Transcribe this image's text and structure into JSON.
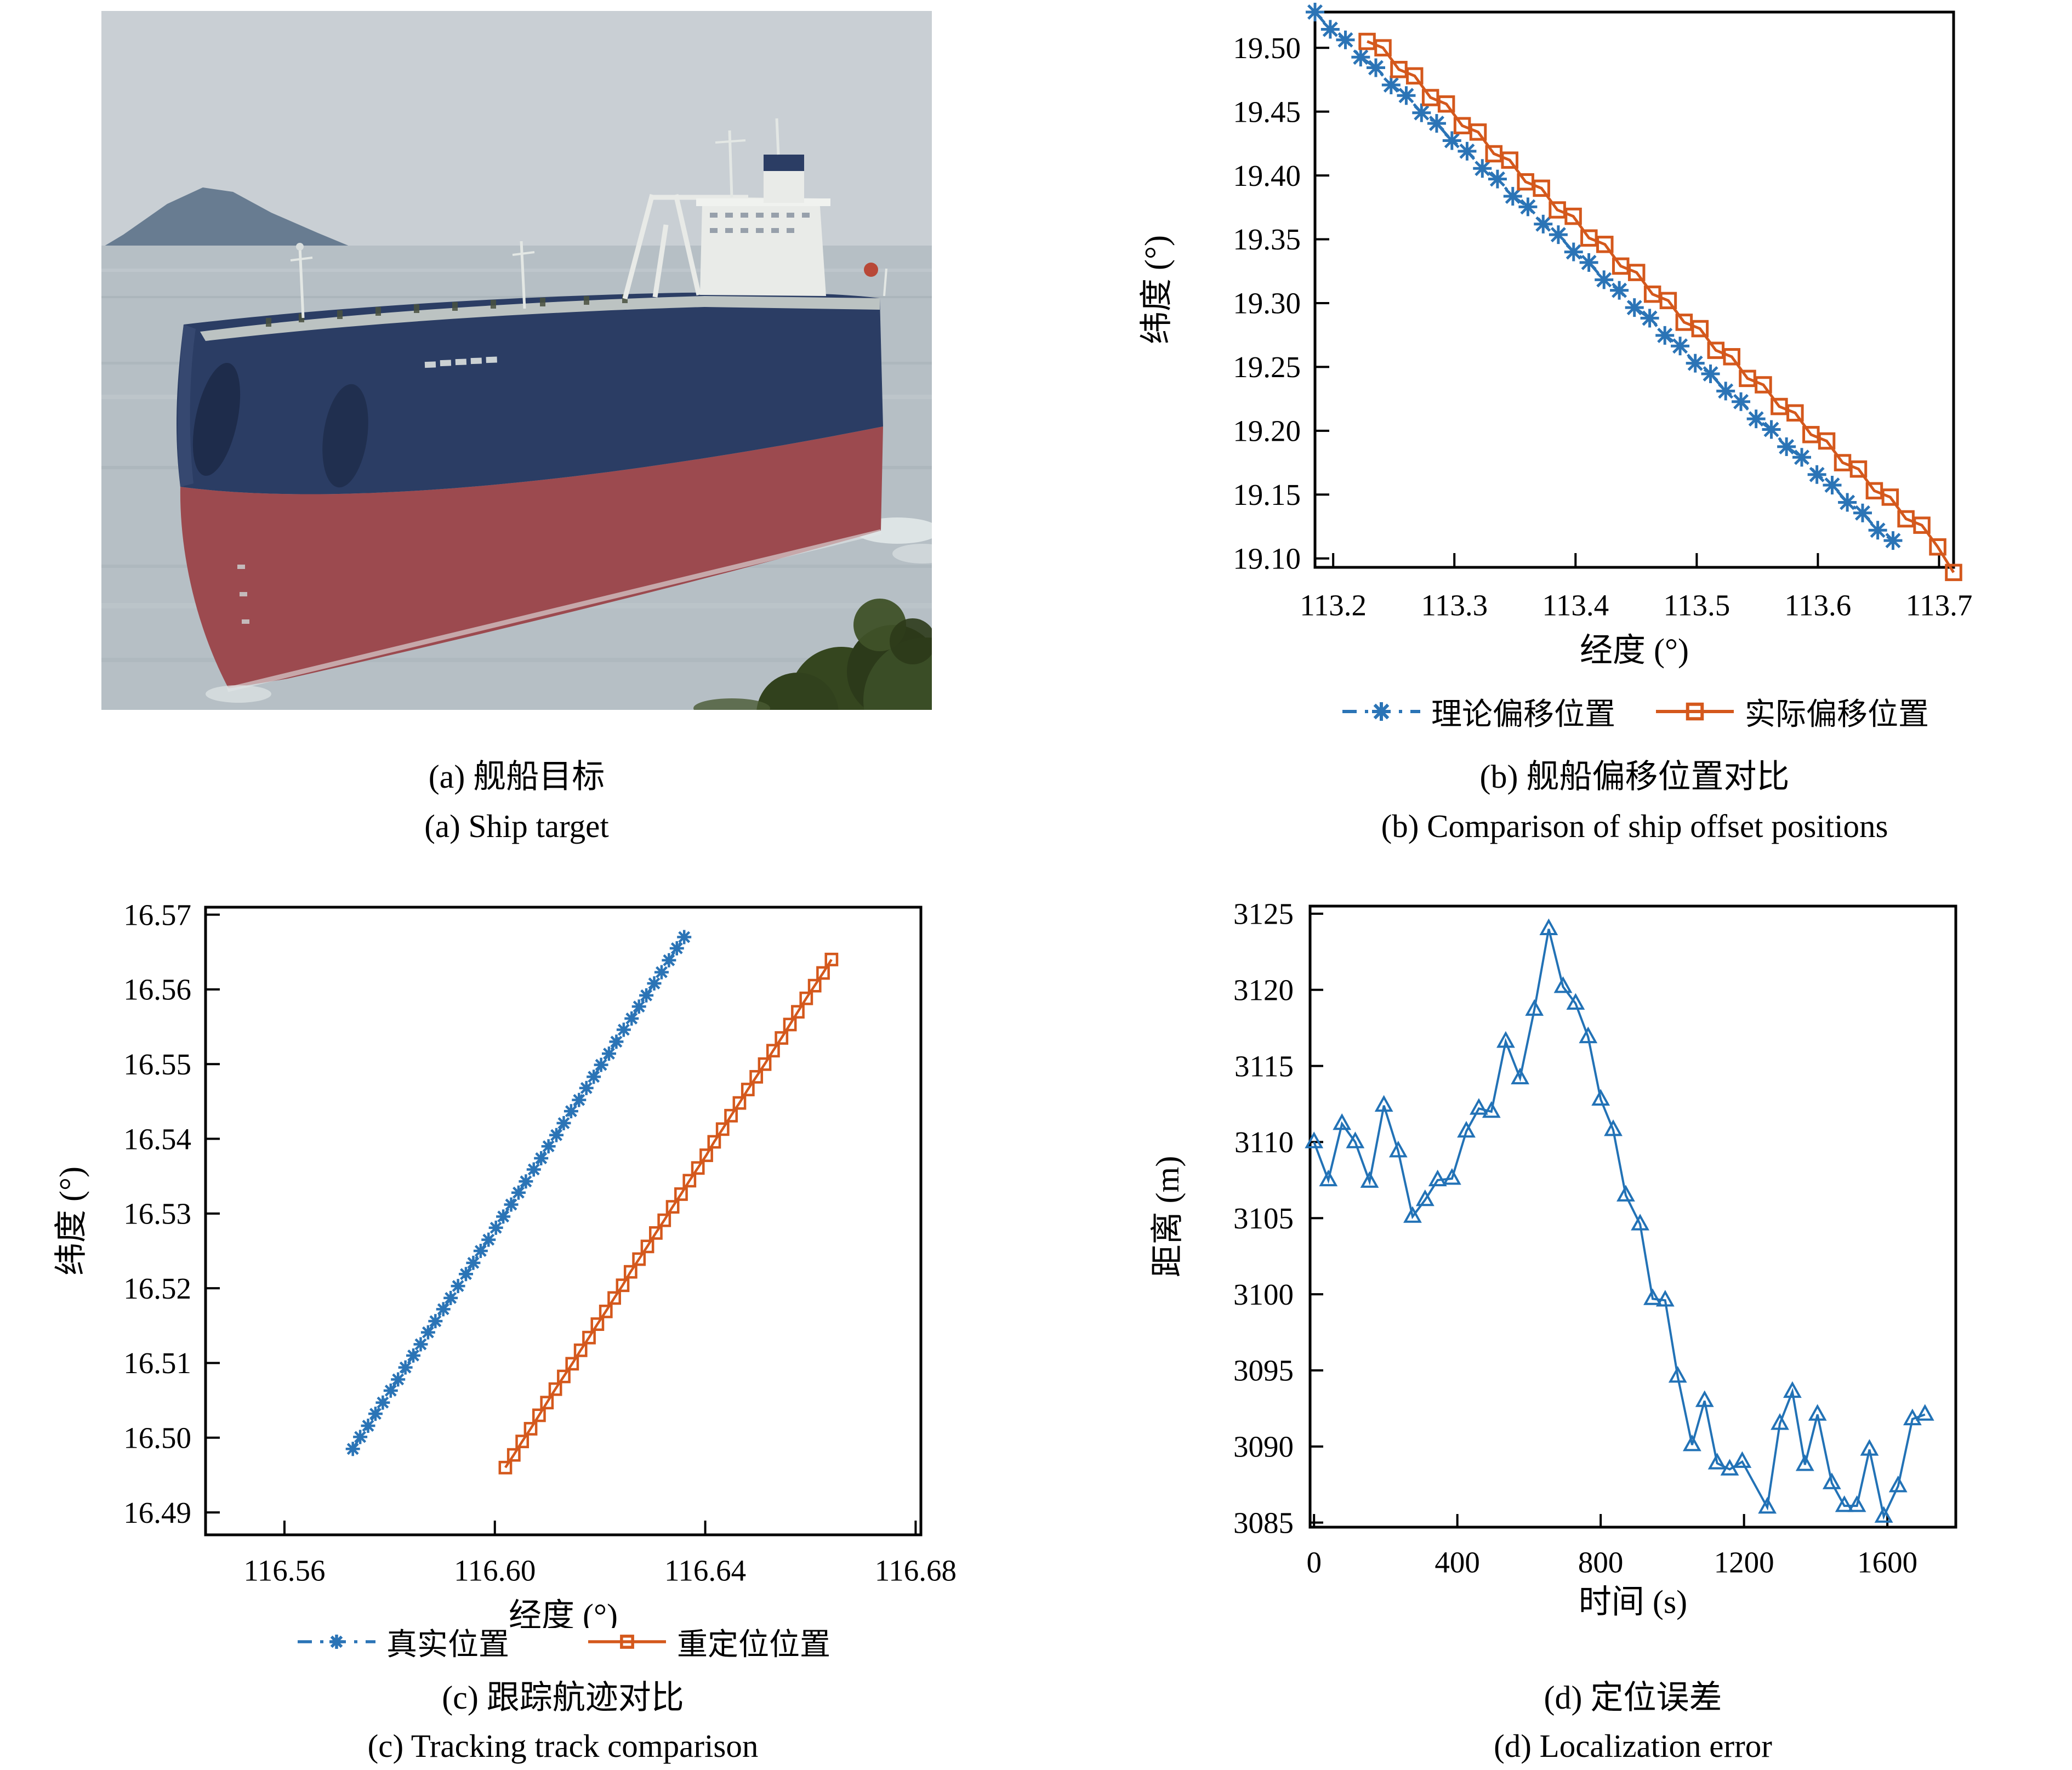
{
  "panels": {
    "a": {
      "caption_zh": "(a) 舰船目标",
      "caption_en": "(a) Ship target",
      "photo": {
        "description": "large crude-oil tanker with dark blue upper hull and red lower hull sailing on a calm grey sea, distant island at left, green foliage in right foreground",
        "colors": {
          "sky": "#c9cfd4",
          "sea": "#b6bfc5",
          "island": "#5a7188",
          "hull_top": "#2b3d64",
          "hull_bottom": "#9c4a4f",
          "superstructure": "#e9ebe8",
          "deck": "#ccd2cc",
          "foliage": "#35461f",
          "wake": "#e4eaea"
        }
      }
    },
    "b": {
      "caption_zh": "(b) 舰船偏移位置对比",
      "caption_en": "(b) Comparison of ship offset positions"
    },
    "c": {
      "caption_zh": "(c) 跟踪航迹对比",
      "caption_en": "(c) Tracking track comparison"
    },
    "d": {
      "caption_zh": "(d) 定位误差",
      "caption_en": "(d) Localization error"
    }
  },
  "chart_data": [
    {
      "id": "b",
      "type": "line",
      "xlabel": "经度 (°)",
      "ylabel": "纬度 (°)",
      "xlim": [
        113.185,
        113.712
      ],
      "ylim": [
        19.093,
        19.528
      ],
      "xticks": [
        113.2,
        113.3,
        113.4,
        113.5,
        113.6,
        113.7
      ],
      "xtick_labels": [
        "113.2",
        "113.3",
        "113.4",
        "113.5",
        "113.6",
        "113.7"
      ],
      "yticks": [
        19.1,
        19.15,
        19.2,
        19.25,
        19.3,
        19.35,
        19.4,
        19.45,
        19.5
      ],
      "ytick_labels": [
        "19.10",
        "19.15",
        "19.20",
        "19.25",
        "19.30",
        "19.35",
        "19.40",
        "19.45",
        "19.50"
      ],
      "grid": false,
      "legend_position": "below",
      "series": [
        {
          "name": "理论偏移位置",
          "color": "#2b74b6",
          "marker": "asterisk",
          "line_style": "dashdot",
          "points": [
            [
              113.185,
              19.528
            ],
            [
              113.1976,
              19.5145
            ],
            [
              113.2101,
              19.5062
            ],
            [
              113.2227,
              19.4927
            ],
            [
              113.2352,
              19.4844
            ],
            [
              113.2478,
              19.4709
            ],
            [
              113.2603,
              19.4626
            ],
            [
              113.2729,
              19.4491
            ],
            [
              113.2854,
              19.4408
            ],
            [
              113.298,
              19.4273
            ],
            [
              113.3105,
              19.419
            ],
            [
              113.3231,
              19.4055
            ],
            [
              113.3356,
              19.3972
            ],
            [
              113.3482,
              19.3837
            ],
            [
              113.3607,
              19.3754
            ],
            [
              113.3733,
              19.3619
            ],
            [
              113.3858,
              19.3536
            ],
            [
              113.3984,
              19.3401
            ],
            [
              113.411,
              19.3318
            ],
            [
              113.4235,
              19.3183
            ],
            [
              113.4361,
              19.31
            ],
            [
              113.4486,
              19.2965
            ],
            [
              113.4612,
              19.2882
            ],
            [
              113.4737,
              19.2747
            ],
            [
              113.4863,
              19.2664
            ],
            [
              113.4988,
              19.2529
            ],
            [
              113.5114,
              19.2446
            ],
            [
              113.5239,
              19.2311
            ],
            [
              113.5365,
              19.2228
            ],
            [
              113.549,
              19.2093
            ],
            [
              113.5616,
              19.201
            ],
            [
              113.5741,
              19.1875
            ],
            [
              113.5867,
              19.1792
            ],
            [
              113.5992,
              19.1657
            ],
            [
              113.6118,
              19.1574
            ],
            [
              113.6243,
              19.1439
            ],
            [
              113.6369,
              19.1356
            ],
            [
              113.6494,
              19.1221
            ],
            [
              113.662,
              19.114
            ]
          ]
        },
        {
          "name": "实际偏移位置",
          "color": "#d4581c",
          "marker": "square",
          "line_style": "solid",
          "points": [
            [
              113.228,
              19.505
            ],
            [
              113.2411,
              19.5
            ],
            [
              113.2542,
              19.483
            ],
            [
              113.2672,
              19.478
            ],
            [
              113.2803,
              19.461
            ],
            [
              113.2934,
              19.456
            ],
            [
              113.3065,
              19.439
            ],
            [
              113.3196,
              19.434
            ],
            [
              113.3326,
              19.417
            ],
            [
              113.3457,
              19.412
            ],
            [
              113.3588,
              19.395
            ],
            [
              113.3719,
              19.39
            ],
            [
              113.385,
              19.373
            ],
            [
              113.3981,
              19.368
            ],
            [
              113.4111,
              19.351
            ],
            [
              113.4242,
              19.346
            ],
            [
              113.4373,
              19.329
            ],
            [
              113.4504,
              19.324
            ],
            [
              113.4635,
              19.307
            ],
            [
              113.4765,
              19.302
            ],
            [
              113.4896,
              19.285
            ],
            [
              113.5027,
              19.28
            ],
            [
              113.5158,
              19.263
            ],
            [
              113.5289,
              19.258
            ],
            [
              113.5419,
              19.241
            ],
            [
              113.555,
              19.236
            ],
            [
              113.5681,
              19.219
            ],
            [
              113.5812,
              19.214
            ],
            [
              113.5943,
              19.197
            ],
            [
              113.6073,
              19.192
            ],
            [
              113.6204,
              19.175
            ],
            [
              113.6335,
              19.17
            ],
            [
              113.6466,
              19.153
            ],
            [
              113.6597,
              19.148
            ],
            [
              113.6727,
              19.131
            ],
            [
              113.6858,
              19.126
            ],
            [
              113.6989,
              19.109
            ],
            [
              113.712,
              19.089
            ]
          ]
        }
      ]
    },
    {
      "id": "c",
      "type": "line",
      "xlabel": "经度 (°)",
      "ylabel": "纬度 (°)",
      "xlim": [
        116.545,
        116.681
      ],
      "ylim": [
        16.487,
        16.571
      ],
      "xticks": [
        116.56,
        116.6,
        116.64,
        116.68
      ],
      "xtick_labels": [
        "116.56",
        "116.60",
        "116.64",
        "116.68"
      ],
      "yticks": [
        16.49,
        16.5,
        16.51,
        16.52,
        16.53,
        16.54,
        16.55,
        16.56,
        16.57
      ],
      "ytick_labels": [
        "16.49",
        "16.50",
        "16.51",
        "16.52",
        "16.53",
        "16.54",
        "16.55",
        "16.56",
        "16.57"
      ],
      "grid": false,
      "legend_position": "below",
      "series": [
        {
          "name": "真实位置",
          "color": "#2b74b6",
          "marker": "asterisk",
          "line_style": "dashdot",
          "points": [
            [
              116.573,
              16.4985
            ],
            [
              116.5744,
              16.5001
            ],
            [
              116.5759,
              16.5016
            ],
            [
              116.5773,
              16.5032
            ],
            [
              116.5787,
              16.5047
            ],
            [
              116.5802,
              16.5063
            ],
            [
              116.5816,
              16.5078
            ],
            [
              116.583,
              16.5094
            ],
            [
              116.5845,
              16.511
            ],
            [
              116.5859,
              16.5125
            ],
            [
              116.5873,
              16.5141
            ],
            [
              116.5887,
              16.5156
            ],
            [
              116.5902,
              16.5172
            ],
            [
              116.5916,
              16.5187
            ],
            [
              116.593,
              16.5203
            ],
            [
              116.5945,
              16.5219
            ],
            [
              116.5959,
              16.5234
            ],
            [
              116.5973,
              16.525
            ],
            [
              116.5988,
              16.5265
            ],
            [
              116.6002,
              16.5281
            ],
            [
              116.6016,
              16.5296
            ],
            [
              116.6031,
              16.5312
            ],
            [
              116.6045,
              16.5328
            ],
            [
              116.6059,
              16.5343
            ],
            [
              116.6074,
              16.5359
            ],
            [
              116.6088,
              16.5374
            ],
            [
              116.6102,
              16.539
            ],
            [
              116.6117,
              16.5405
            ],
            [
              116.6131,
              16.5421
            ],
            [
              116.6145,
              16.5437
            ],
            [
              116.616,
              16.5452
            ],
            [
              116.6174,
              16.5468
            ],
            [
              116.6188,
              16.5483
            ],
            [
              116.6202,
              16.5499
            ],
            [
              116.6217,
              16.5514
            ],
            [
              116.6231,
              16.553
            ],
            [
              116.6245,
              16.5546
            ],
            [
              116.626,
              16.5561
            ],
            [
              116.6274,
              16.5577
            ],
            [
              116.6288,
              16.5592
            ],
            [
              116.6303,
              16.5608
            ],
            [
              116.6317,
              16.5623
            ],
            [
              116.6331,
              16.5639
            ],
            [
              116.6346,
              16.5655
            ],
            [
              116.636,
              16.567
            ]
          ]
        },
        {
          "name": "重定位位置",
          "color": "#d4581c",
          "marker": "square",
          "line_style": "solid",
          "points": [
            [
              116.602,
              16.496
            ],
            [
              116.6036,
              16.4977
            ],
            [
              116.6052,
              16.4995
            ],
            [
              116.6068,
              16.5012
            ],
            [
              116.6084,
              16.503
            ],
            [
              116.6099,
              16.5047
            ],
            [
              116.6115,
              16.5065
            ],
            [
              116.6131,
              16.5082
            ],
            [
              116.6147,
              16.5099
            ],
            [
              116.6163,
              16.5117
            ],
            [
              116.6179,
              16.5134
            ],
            [
              116.6195,
              16.5152
            ],
            [
              116.6211,
              16.5169
            ],
            [
              116.6227,
              16.5187
            ],
            [
              116.6243,
              16.5204
            ],
            [
              116.6258,
              16.5222
            ],
            [
              116.6274,
              16.5239
            ],
            [
              116.629,
              16.5256
            ],
            [
              116.6306,
              16.5274
            ],
            [
              116.6322,
              16.5291
            ],
            [
              116.6338,
              16.5309
            ],
            [
              116.6354,
              16.5326
            ],
            [
              116.637,
              16.5344
            ],
            [
              116.6386,
              16.5361
            ],
            [
              116.6402,
              16.5378
            ],
            [
              116.6417,
              16.5396
            ],
            [
              116.6433,
              16.5413
            ],
            [
              116.6449,
              16.5431
            ],
            [
              116.6465,
              16.5448
            ],
            [
              116.6481,
              16.5466
            ],
            [
              116.6497,
              16.5483
            ],
            [
              116.6513,
              16.55
            ],
            [
              116.6529,
              16.5518
            ],
            [
              116.6545,
              16.5535
            ],
            [
              116.6561,
              16.5553
            ],
            [
              116.6576,
              16.557
            ],
            [
              116.6592,
              16.5588
            ],
            [
              116.6608,
              16.5605
            ],
            [
              116.6624,
              16.5622
            ],
            [
              116.664,
              16.564
            ]
          ]
        }
      ]
    },
    {
      "id": "d",
      "type": "line",
      "xlabel": "时间 (s)",
      "ylabel": "距离 (m)",
      "xlim": [
        -11,
        1791
      ],
      "ylim": [
        3084.7,
        3125.5
      ],
      "xticks": [
        0,
        400,
        800,
        1200,
        1600
      ],
      "xtick_labels": [
        "0",
        "400",
        "800",
        "1200",
        "1600"
      ],
      "yticks": [
        3085,
        3090,
        3095,
        3100,
        3105,
        3110,
        3115,
        3120,
        3125
      ],
      "ytick_labels": [
        "3085",
        "3090",
        "3095",
        "3100",
        "3105",
        "3110",
        "3115",
        "3120",
        "3125"
      ],
      "grid": false,
      "legend_position": "none",
      "series": [
        {
          "name": "定位误差",
          "color": "#2272b6",
          "marker": "triangle",
          "line_style": "solid",
          "points": [
            [
              0,
              3110
            ],
            [
              40,
              3107.5
            ],
            [
              78,
              3111.2
            ],
            [
              115,
              3110
            ],
            [
              155,
              3107.4
            ],
            [
              195,
              3112.4
            ],
            [
              235,
              3109.4
            ],
            [
              275,
              3105.1
            ],
            [
              310,
              3106.2
            ],
            [
              345,
              3107.5
            ],
            [
              385,
              3107.6
            ],
            [
              425,
              3110.7
            ],
            [
              460,
              3112.2
            ],
            [
              495,
              3112
            ],
            [
              535,
              3116.6
            ],
            [
              575,
              3114.2
            ],
            [
              615,
              3118.7
            ],
            [
              655,
              3124
            ],
            [
              695,
              3120.2
            ],
            [
              730,
              3119.1
            ],
            [
              765,
              3116.9
            ],
            [
              800,
              3112.8
            ],
            [
              835,
              3110.8
            ],
            [
              870,
              3106.5
            ],
            [
              910,
              3104.6
            ],
            [
              945,
              3099.7
            ],
            [
              980,
              3099.6
            ],
            [
              1015,
              3094.6
            ],
            [
              1055,
              3090.1
            ],
            [
              1090,
              3093
            ],
            [
              1125,
              3088.9
            ],
            [
              1160,
              3088.5
            ],
            [
              1195,
              3089
            ],
            [
              1265,
              3086
            ],
            [
              1300,
              3091.5
            ],
            [
              1335,
              3093.6
            ],
            [
              1370,
              3088.8
            ],
            [
              1405,
              3092.1
            ],
            [
              1445,
              3087.6
            ],
            [
              1480,
              3086.1
            ],
            [
              1515,
              3086.1
            ],
            [
              1550,
              3089.8
            ],
            [
              1590,
              3085.4
            ],
            [
              1630,
              3087.4
            ],
            [
              1670,
              3091.8
            ],
            [
              1705,
              3092.1
            ]
          ]
        }
      ]
    }
  ]
}
